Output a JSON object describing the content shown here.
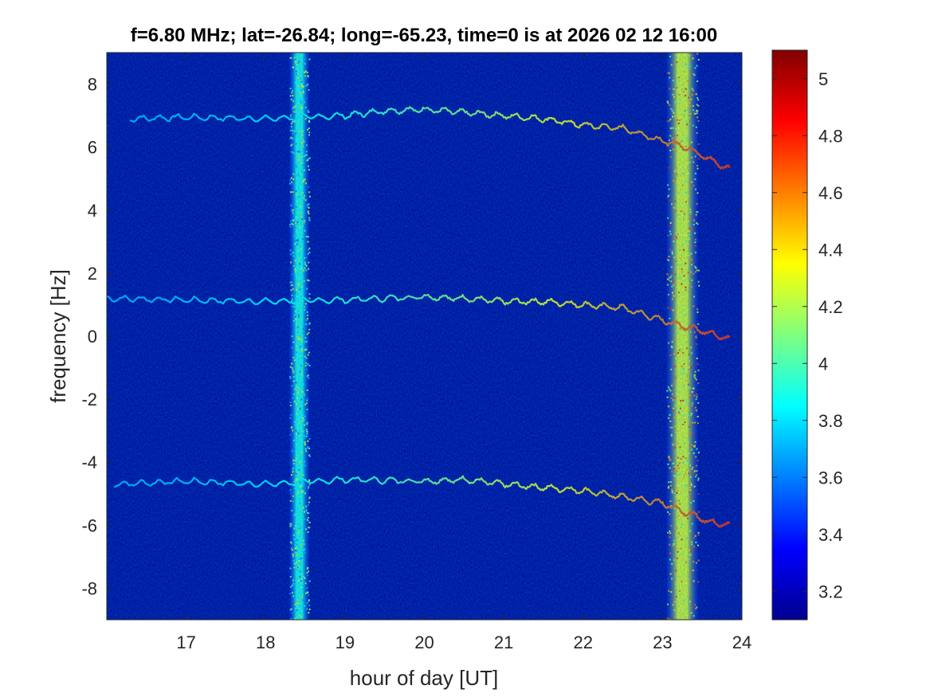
{
  "chart_data": {
    "type": "heatmap",
    "title": "f=6.80 MHz;  lat=-26.84; long=-65.23, time=0 is at 2026 02 12 16:00",
    "xlabel": "hour of day [UT]",
    "ylabel": "frequency [Hz]",
    "xlim": [
      16.0,
      24.0
    ],
    "ylim": [
      -9.0,
      9.0
    ],
    "xticks": [
      17,
      18,
      19,
      20,
      21,
      22,
      23,
      24
    ],
    "yticks": [
      8,
      6,
      4,
      2,
      0,
      -2,
      -4,
      -6,
      -8
    ],
    "colorbar": {
      "colormap": "jet",
      "range": [
        3.1,
        5.1
      ],
      "ticks": [
        5,
        4.8,
        4.6,
        4.4,
        4.2,
        4,
        3.8,
        3.6,
        3.4,
        3.2
      ]
    },
    "background_level": 3.15,
    "broadband_bands": [
      {
        "x_start": 18.3,
        "x_end": 18.55,
        "level": 3.9
      },
      {
        "x_start": 23.05,
        "x_end": 23.45,
        "level": 4.3
      }
    ],
    "traces": [
      {
        "level_start": 3.7,
        "level_end": 4.8,
        "x": [
          16.3,
          17.0,
          18.0,
          19.0,
          19.5,
          20.0,
          20.5,
          21.0,
          21.5,
          22.0,
          22.5,
          23.0,
          23.3,
          23.6,
          23.85
        ],
        "y": [
          6.9,
          6.95,
          6.9,
          7.0,
          7.15,
          7.2,
          7.1,
          7.0,
          6.9,
          6.7,
          6.6,
          6.2,
          6.0,
          5.6,
          5.3
        ]
      },
      {
        "level_start": 3.7,
        "level_end": 4.8,
        "x": [
          16.0,
          17.0,
          18.0,
          19.0,
          20.0,
          20.5,
          21.0,
          21.5,
          22.0,
          22.5,
          23.0,
          23.3,
          23.6,
          23.85
        ],
        "y": [
          1.2,
          1.15,
          1.1,
          1.15,
          1.25,
          1.2,
          1.1,
          1.1,
          1.0,
          0.9,
          0.5,
          0.3,
          0.1,
          -0.1
        ]
      },
      {
        "level_start": 3.7,
        "level_end": 4.8,
        "x": [
          16.1,
          17.0,
          18.0,
          19.0,
          20.0,
          20.5,
          21.0,
          21.5,
          22.0,
          22.5,
          23.0,
          23.3,
          23.6,
          23.85
        ],
        "y": [
          -4.7,
          -4.6,
          -4.7,
          -4.55,
          -4.6,
          -4.55,
          -4.7,
          -4.8,
          -4.9,
          -5.1,
          -5.3,
          -5.6,
          -5.9,
          -6.0
        ]
      }
    ]
  }
}
